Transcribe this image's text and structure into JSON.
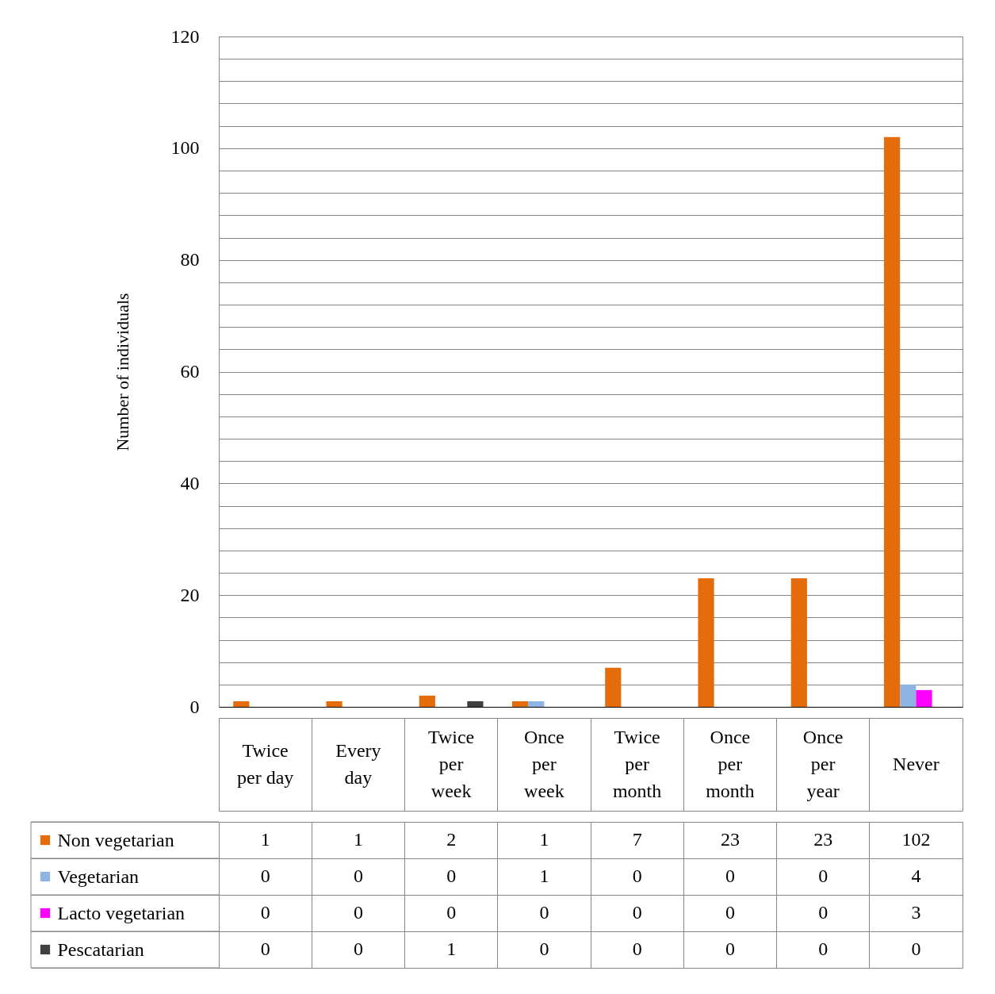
{
  "chart_data": {
    "type": "bar",
    "ylabel": "Number of individuals",
    "categories": [
      "Twice per day",
      "Every day",
      "Twice per week",
      "Once per week",
      "Twice per month",
      "Once per month",
      "Once per year",
      "Never"
    ],
    "series": [
      {
        "name": "Non vegetarian",
        "color": "#e46c0a",
        "values": [
          1,
          1,
          2,
          1,
          7,
          23,
          23,
          102
        ]
      },
      {
        "name": "Vegetarian",
        "color": "#8eb4e3",
        "values": [
          0,
          0,
          0,
          1,
          0,
          0,
          0,
          4
        ]
      },
      {
        "name": "Lacto vegetarian",
        "color": "#ff00ff",
        "values": [
          0,
          0,
          0,
          0,
          0,
          0,
          0,
          3
        ]
      },
      {
        "name": "Pescatarian",
        "color": "#404040",
        "values": [
          0,
          0,
          1,
          0,
          0,
          0,
          0,
          0
        ]
      }
    ],
    "ylim": [
      0,
      120
    ],
    "yticks": [
      0,
      {
        "value": 4,
        "label": null
      },
      {
        "value": 8,
        "label": null
      },
      {
        "value": 12,
        "label": null
      },
      {
        "value": 16,
        "label": null
      },
      20,
      {
        "value": 24,
        "label": null
      },
      {
        "value": 28,
        "label": null
      },
      {
        "value": 32,
        "label": null
      },
      {
        "value": 36,
        "label": null
      },
      40,
      {
        "value": 44,
        "label": null
      },
      {
        "value": 48,
        "label": null
      },
      {
        "value": 52,
        "label": null
      },
      {
        "value": 56,
        "label": null
      },
      60,
      {
        "value": 64,
        "label": null
      },
      {
        "value": 68,
        "label": null
      },
      {
        "value": 72,
        "label": null
      },
      {
        "value": 76,
        "label": null
      },
      80,
      {
        "value": 84,
        "label": null
      },
      {
        "value": 88,
        "label": null
      },
      {
        "value": 92,
        "label": null
      },
      {
        "value": 96,
        "label": null
      },
      100,
      {
        "value": 104,
        "label": null
      },
      {
        "value": 108,
        "label": null
      },
      {
        "value": 112,
        "label": null
      },
      {
        "value": 116,
        "label": null
      },
      120
    ],
    "grid": "y",
    "legend": "bottom",
    "data_labels": true
  }
}
